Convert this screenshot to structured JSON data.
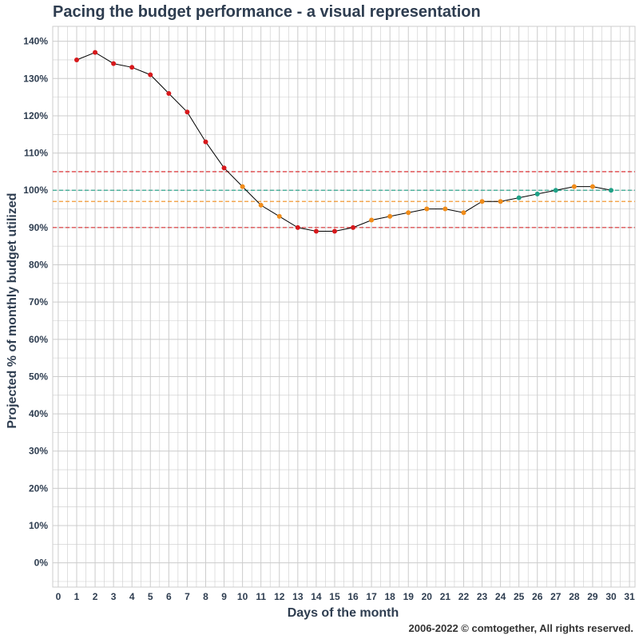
{
  "title": "Pacing the budget performance - a visual representation",
  "copyright": "2006-2022 © comtogether, All rights reserved.",
  "colors": {
    "line": "#000000",
    "over_pace": "#d7191c",
    "near_pace": "#f08c1a",
    "on_pace": "#1fa187",
    "grid": "#cccccc",
    "text": "#2e3d50"
  },
  "chart_data": {
    "type": "line",
    "title": "Pacing the budget performance - a visual representation",
    "xlabel": "Days of the month",
    "ylabel": "Projected % of monthly budget utilized",
    "xlim": [
      -0.3,
      31.3
    ],
    "ylim": [
      -6.5,
      144
    ],
    "x_ticks": [
      0,
      1,
      2,
      3,
      4,
      5,
      6,
      7,
      8,
      9,
      10,
      11,
      12,
      13,
      14,
      15,
      16,
      17,
      18,
      19,
      20,
      21,
      22,
      23,
      24,
      25,
      26,
      27,
      28,
      29,
      30,
      31
    ],
    "y_ticks": [
      0,
      10,
      20,
      30,
      40,
      50,
      60,
      70,
      80,
      90,
      100,
      110,
      120,
      130,
      140
    ],
    "y_tick_labels": [
      "0%",
      "10%",
      "20%",
      "30%",
      "40%",
      "50%",
      "60%",
      "70%",
      "80%",
      "90%",
      "100%",
      "110%",
      "120%",
      "130%",
      "140%"
    ],
    "grid": true,
    "series": [
      {
        "x": [
          1,
          2,
          3,
          4,
          5,
          6,
          7,
          8,
          9,
          10,
          11,
          12,
          13,
          14,
          15,
          16,
          17,
          18,
          19,
          20,
          21,
          22,
          23,
          24,
          25,
          26,
          27,
          28,
          29,
          30
        ],
        "y": [
          135,
          137,
          134,
          133,
          131,
          126,
          121,
          113,
          106,
          101,
          96,
          93,
          90,
          89,
          89,
          90,
          92,
          93,
          94,
          95,
          95,
          94,
          97,
          97,
          98,
          99,
          100,
          101,
          101,
          100
        ],
        "point_colors": [
          "over_pace",
          "over_pace",
          "over_pace",
          "over_pace",
          "over_pace",
          "over_pace",
          "over_pace",
          "over_pace",
          "over_pace",
          "near_pace",
          "near_pace",
          "near_pace",
          "over_pace",
          "over_pace",
          "over_pace",
          "over_pace",
          "near_pace",
          "near_pace",
          "near_pace",
          "near_pace",
          "near_pace",
          "near_pace",
          "near_pace",
          "near_pace",
          "on_pace",
          "on_pace",
          "on_pace",
          "near_pace",
          "near_pace",
          "on_pace"
        ]
      }
    ],
    "reference_lines": [
      {
        "y": 105,
        "style": "dashed",
        "color": "#d7191c"
      },
      {
        "y": 100,
        "style": "dashed",
        "color": "#1fa187"
      },
      {
        "y": 97,
        "style": "dashed",
        "color": "#f08c1a"
      },
      {
        "y": 90,
        "style": "dashed",
        "color": "#d7191c"
      }
    ]
  }
}
